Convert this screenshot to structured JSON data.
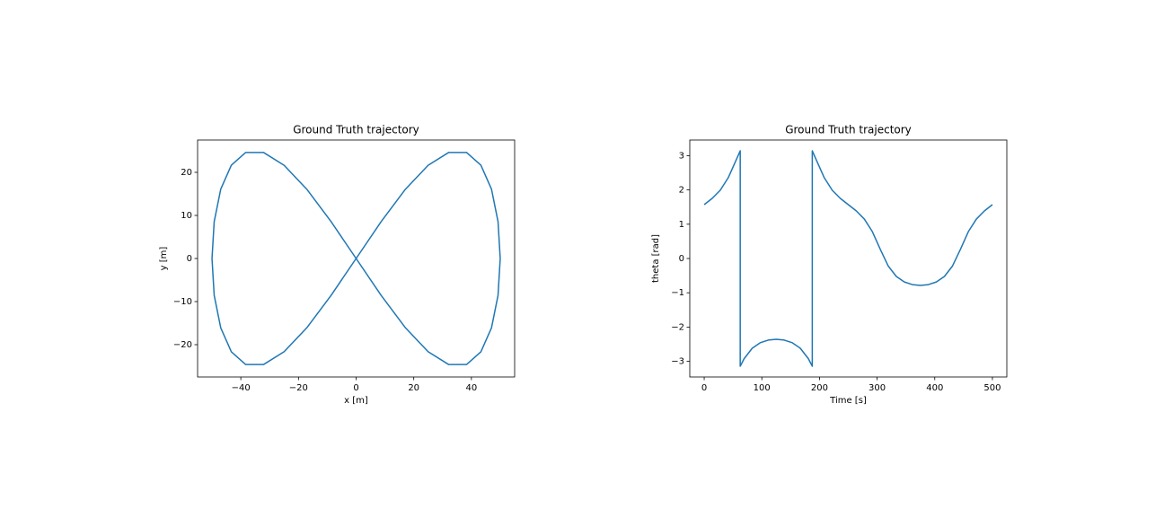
{
  "chart_data": [
    {
      "type": "line",
      "title": "Ground Truth trajectory",
      "x_label": "x [m]",
      "y_label": "y [m]",
      "color": "#1f77b4",
      "x": [
        50,
        49.24,
        46.98,
        43.3,
        38.3,
        32.14,
        25,
        17.1,
        8.68,
        0,
        -8.68,
        -17.1,
        -25,
        -32.14,
        -38.3,
        -43.3,
        -46.98,
        -49.24,
        -50,
        -49.24,
        -46.98,
        -43.3,
        -38.3,
        -32.14,
        -25,
        -17.1,
        -8.68,
        0,
        8.68,
        17.1,
        25,
        32.14,
        38.3,
        43.3,
        46.98,
        49.24,
        50
      ],
      "values": [
        0,
        8.55,
        16.07,
        21.65,
        24.62,
        24.62,
        21.65,
        16.07,
        8.55,
        0,
        -8.55,
        -16.07,
        -21.65,
        -24.62,
        -24.62,
        -21.65,
        -16.07,
        -8.55,
        0,
        8.55,
        16.07,
        21.65,
        24.62,
        24.62,
        21.65,
        16.07,
        8.55,
        0,
        -8.55,
        -16.07,
        -21.65,
        -24.62,
        -24.62,
        -21.65,
        -16.07,
        -8.55,
        0
      ],
      "xlim": [
        -55,
        55
      ],
      "ylim": [
        -27.5,
        27.5
      ],
      "xticks": [
        {
          "value": -40,
          "label": "−40"
        },
        {
          "value": -20,
          "label": "−20"
        },
        0,
        20,
        40
      ],
      "yticks": [
        {
          "value": -20,
          "label": "−20"
        },
        {
          "value": -10,
          "label": "−10"
        },
        0,
        10,
        20
      ]
    },
    {
      "type": "line",
      "title": "Ground Truth trajectory",
      "x_label": "Time [s]",
      "y_label": "theta [rad]",
      "color": "#1f77b4",
      "x": [
        0,
        13.9,
        27.8,
        41.7,
        55.6,
        62.5,
        62.5,
        69.4,
        83.3,
        97.2,
        111.1,
        125,
        138.9,
        152.8,
        166.7,
        180.6,
        187.5,
        187.5,
        194.4,
        208.3,
        222.2,
        236.1,
        250,
        263.9,
        277.8,
        291.7,
        305.6,
        319.4,
        333.3,
        347.2,
        361.1,
        375,
        388.9,
        402.8,
        416.7,
        430.6,
        444.4,
        458.3,
        472.2,
        486.1,
        500
      ],
      "values": [
        1.571,
        1.754,
        1.99,
        2.356,
        2.878,
        3.142,
        -3.142,
        -2.919,
        -2.618,
        -2.457,
        -2.38,
        -2.356,
        -2.38,
        -2.457,
        -2.618,
        -2.919,
        -3.142,
        3.142,
        2.878,
        2.356,
        1.99,
        1.754,
        1.571,
        1.388,
        1.151,
        0.785,
        0.264,
        -0.223,
        -0.524,
        -0.684,
        -0.762,
        -0.785,
        -0.762,
        -0.684,
        -0.524,
        -0.223,
        0.264,
        0.785,
        1.151,
        1.388,
        1.571
      ],
      "xlim": [
        -25,
        525
      ],
      "ylim": [
        -3.456,
        3.456
      ],
      "xticks": [
        0,
        100,
        200,
        300,
        400,
        500
      ],
      "yticks": [
        {
          "value": -3,
          "label": "−3"
        },
        {
          "value": -2,
          "label": "−2"
        },
        {
          "value": -1,
          "label": "−1"
        },
        0,
        1,
        2,
        3
      ]
    }
  ]
}
